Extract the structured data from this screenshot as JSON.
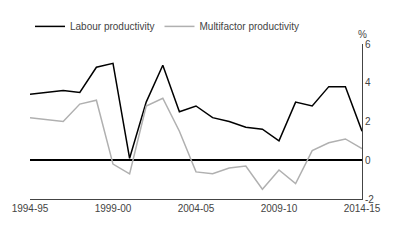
{
  "chart_data": {
    "type": "line",
    "y_label": "%",
    "categories": [
      "1994-95",
      null,
      null,
      null,
      null,
      "1999-00",
      null,
      null,
      null,
      null,
      "2004-05",
      null,
      null,
      null,
      null,
      "2009-10",
      null,
      null,
      null,
      null,
      "2014-15"
    ],
    "series": [
      {
        "name": "Labour productivity",
        "color": "#000000",
        "values": [
          3.4,
          3.5,
          3.6,
          3.5,
          4.8,
          5.0,
          0.1,
          3.0,
          4.9,
          2.5,
          2.8,
          2.2,
          2.0,
          1.7,
          1.6,
          1.0,
          3.0,
          2.8,
          3.8,
          3.8,
          1.5
        ]
      },
      {
        "name": "Multifactor productivity",
        "color": "#b0b0b0",
        "values": [
          2.2,
          2.1,
          2.0,
          2.9,
          3.1,
          -0.2,
          -0.7,
          2.8,
          3.2,
          1.5,
          -0.6,
          -0.7,
          -0.4,
          -0.3,
          -1.5,
          -0.5,
          -1.2,
          0.5,
          0.9,
          1.1,
          0.6
        ]
      }
    ],
    "ylim": [
      -2,
      6
    ],
    "yticks": [
      -2,
      0,
      2,
      4,
      6
    ],
    "grid": false,
    "legend": "upper left"
  }
}
